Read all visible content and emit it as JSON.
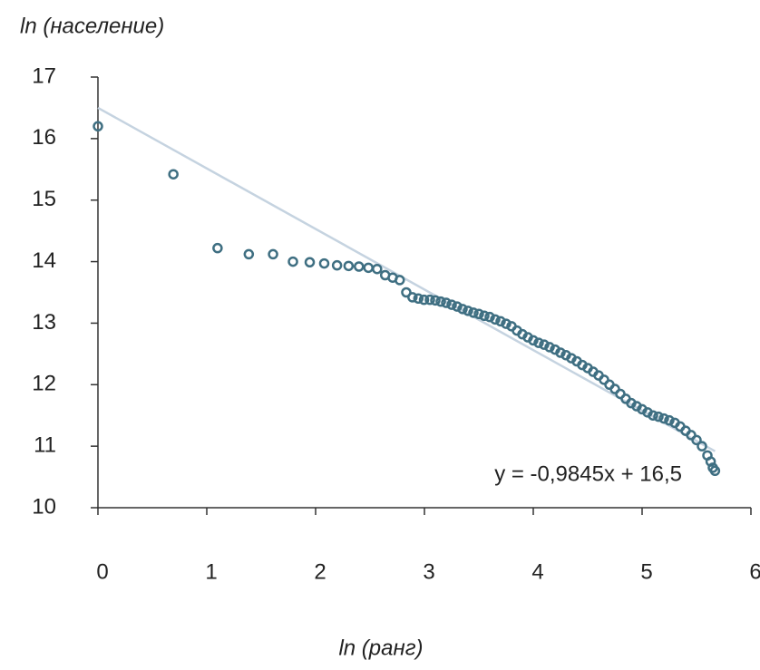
{
  "chart_data": {
    "type": "scatter",
    "y_label": "ln (население)",
    "x_label": "ln (ранг)",
    "xlim": [
      0,
      6
    ],
    "xticks": [
      0,
      1,
      2,
      3,
      4,
      5,
      6
    ],
    "ylim": [
      10,
      17
    ],
    "yticks": [
      10,
      11,
      12,
      13,
      14,
      15,
      16,
      17
    ],
    "grid": false,
    "color": "#3f6f82",
    "x": [
      0,
      0.693,
      1.099,
      1.386,
      1.609,
      1.792,
      1.946,
      2.079,
      2.197,
      2.303,
      2.398,
      2.485,
      2.565,
      2.639,
      2.708,
      2.773,
      2.833,
      2.89,
      2.944,
      2.996,
      3.05,
      3.1,
      3.15,
      3.2,
      3.25,
      3.3,
      3.35,
      3.4,
      3.45,
      3.5,
      3.55,
      3.6,
      3.65,
      3.7,
      3.75,
      3.8,
      3.85,
      3.9,
      3.95,
      4.0,
      4.05,
      4.1,
      4.15,
      4.2,
      4.25,
      4.3,
      4.35,
      4.4,
      4.45,
      4.5,
      4.55,
      4.6,
      4.65,
      4.7,
      4.75,
      4.8,
      4.85,
      4.9,
      4.95,
      5.0,
      5.05,
      5.1,
      5.15,
      5.2,
      5.25,
      5.3,
      5.35,
      5.4,
      5.45,
      5.5,
      5.55,
      5.6,
      5.63,
      5.65,
      5.67
    ],
    "values": [
      16.2,
      15.42,
      14.22,
      14.12,
      14.12,
      14.0,
      13.99,
      13.97,
      13.94,
      13.93,
      13.92,
      13.9,
      13.88,
      13.78,
      13.74,
      13.7,
      13.5,
      13.42,
      13.4,
      13.38,
      13.38,
      13.37,
      13.35,
      13.33,
      13.3,
      13.27,
      13.23,
      13.2,
      13.17,
      13.15,
      13.12,
      13.1,
      13.06,
      13.03,
      12.99,
      12.95,
      12.88,
      12.82,
      12.77,
      12.72,
      12.68,
      12.65,
      12.61,
      12.57,
      12.52,
      12.48,
      12.43,
      12.38,
      12.32,
      12.27,
      12.21,
      12.15,
      12.08,
      12.0,
      11.93,
      11.85,
      11.77,
      11.7,
      11.65,
      11.6,
      11.55,
      11.5,
      11.48,
      11.45,
      11.42,
      11.38,
      11.32,
      11.25,
      11.18,
      11.1,
      11.0,
      10.85,
      10.75,
      10.65,
      10.6
    ],
    "trendline": {
      "slope": -0.9845,
      "intercept": 16.5,
      "color": "#c5d3e0",
      "label": "y = -0,9845x + 16,5"
    }
  }
}
